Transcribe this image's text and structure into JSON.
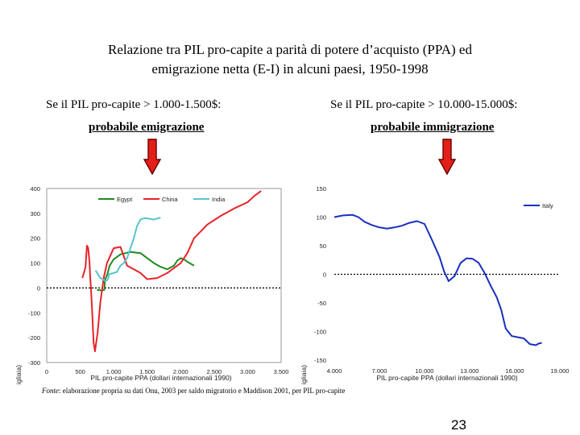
{
  "slide": {
    "title_line1": "Relazione tra PIL pro-capite a parità di potere d’acquisto (PPA) ed",
    "title_line2": "emigrazione netta (E-I) in alcuni paesi, 1950-1998",
    "left_condition": "Se il PIL pro-capite > 1.000-1.500$:",
    "left_label": "probabile emigrazione",
    "right_condition": "Se il PIL pro-capite > 10.000-15.000$:",
    "right_label": "probabile immigrazione",
    "source_italic": "Fonte",
    "source_text": ": elaborazione propria su dati Onu, 2003 per saldo migratorio e Maddison 2001, per PIL pro-capite",
    "page_number": "23"
  },
  "colors": {
    "arrow_fill": "#e32018",
    "arrow_stroke": "#6b0000",
    "egypt": "#1f8a1f",
    "china": "#e8232a",
    "india": "#58c4cc",
    "italy": "#1a2fc0"
  },
  "chart_data": [
    {
      "type": "line",
      "xlabel": "PIL pro-capite PPA (dollari internazionali 1990)",
      "ylabel": "emigrati - immigrati (migliaia)",
      "xlim": [
        0,
        3500
      ],
      "ylim": [
        -300,
        400
      ],
      "xticks": [
        0,
        500,
        1000,
        1500,
        2000,
        2500,
        3000,
        3500
      ],
      "xtick_labels": [
        "0",
        "500",
        "1.000",
        "1.500",
        "2.000",
        "2.500",
        "3.000",
        "3.500"
      ],
      "yticks": [
        400,
        300,
        200,
        100,
        0,
        -100,
        -200,
        -300
      ],
      "ytick_labels": [
        "400",
        "300",
        "200",
        "100",
        "0",
        "-100",
        "-200",
        "-300"
      ],
      "zero_line": true,
      "legend_position": "top",
      "series": [
        {
          "name": "Egypt",
          "color_key": "egypt",
          "x": [
            750,
            820,
            860,
            870,
            880,
            900,
            920,
            940,
            1000,
            1100,
            1250,
            1400,
            1500,
            1600,
            1700,
            1800,
            1900,
            1950,
            2000,
            2050,
            2100,
            2200
          ],
          "y": [
            -8,
            -10,
            -8,
            30,
            40,
            50,
            70,
            90,
            115,
            135,
            145,
            140,
            120,
            100,
            85,
            75,
            90,
            110,
            120,
            115,
            105,
            90
          ]
        },
        {
          "name": "China",
          "color_key": "china",
          "x": [
            530,
            550,
            580,
            600,
            620,
            640,
            650,
            660,
            680,
            700,
            720,
            760,
            800,
            850,
            900,
            950,
            1000,
            1100,
            1200,
            1300,
            1400,
            1500,
            1650,
            1800,
            2000,
            2100,
            2200,
            2400,
            2600,
            2800,
            3000,
            3100,
            3200
          ],
          "y": [
            40,
            55,
            85,
            170,
            160,
            100,
            40,
            0,
            -100,
            -220,
            -255,
            -180,
            -60,
            40,
            100,
            130,
            160,
            165,
            90,
            75,
            60,
            35,
            40,
            60,
            100,
            140,
            200,
            255,
            290,
            320,
            345,
            370,
            390
          ]
        },
        {
          "name": "India",
          "color_key": "india",
          "x": [
            730,
            800,
            870,
            900,
            920,
            930,
            1000,
            1050,
            1100,
            1150,
            1200,
            1250,
            1300,
            1350,
            1380,
            1400,
            1450,
            1500,
            1600,
            1700
          ],
          "y": [
            70,
            40,
            30,
            30,
            40,
            55,
            60,
            65,
            90,
            100,
            120,
            160,
            200,
            250,
            265,
            275,
            280,
            280,
            275,
            283
          ]
        }
      ]
    },
    {
      "type": "line",
      "xlabel": "PIL pro-capite PPA (dollari internazionali 1990)",
      "ylabel": "emigrati - immigrati (migliaia)",
      "xlim": [
        4000,
        19000
      ],
      "ylim": [
        -150,
        150
      ],
      "xticks": [
        4000,
        7000,
        10000,
        13000,
        16000,
        19000
      ],
      "xtick_labels": [
        "4.000",
        "7.000",
        "10.000",
        "13.000",
        "16.000",
        "19.000"
      ],
      "yticks": [
        150,
        100,
        50,
        0,
        -50,
        -100,
        -150
      ],
      "ytick_labels": [
        "150",
        "100",
        "50",
        "0",
        "-50",
        "-100",
        "-150"
      ],
      "zero_line": true,
      "legend_position": "top-right",
      "series": [
        {
          "name": "Italy",
          "color_key": "italy",
          "x": [
            4000,
            4600,
            5200,
            5600,
            6000,
            6500,
            7000,
            7500,
            8000,
            8500,
            9000,
            9500,
            10000,
            10500,
            11000,
            11300,
            11600,
            12000,
            12400,
            12800,
            13200,
            13600,
            14000,
            14400,
            14800,
            15100,
            15400,
            15800,
            16200,
            16600,
            17000,
            17400,
            17600,
            17800
          ],
          "y": [
            100,
            103,
            104,
            100,
            92,
            86,
            82,
            80,
            82,
            85,
            90,
            93,
            88,
            60,
            30,
            5,
            -12,
            -3,
            20,
            28,
            27,
            20,
            2,
            -20,
            -40,
            -62,
            -95,
            -108,
            -110,
            -112,
            -122,
            -124,
            -121,
            -120
          ]
        }
      ]
    }
  ]
}
